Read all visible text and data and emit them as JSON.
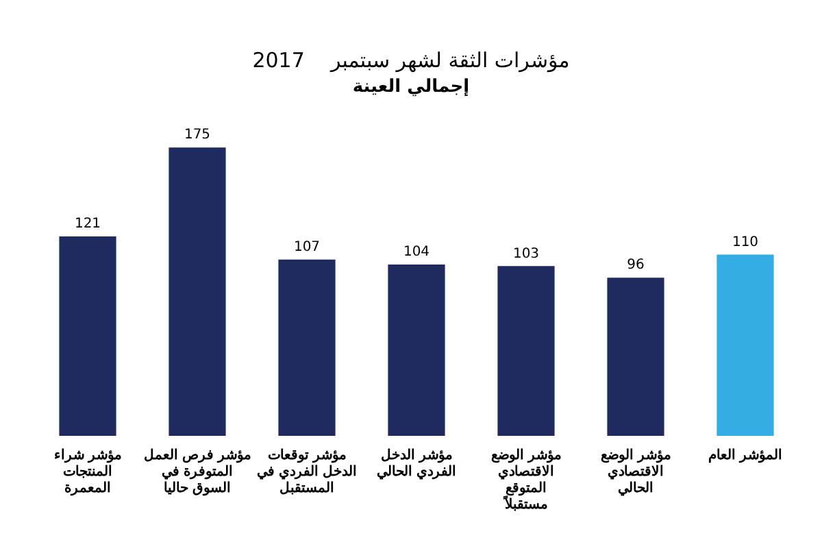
{
  "chart_data": {
    "type": "bar",
    "title": "مؤشرات الثقة لشهر سبتمبر    2017",
    "subtitle": "إجمالي العينة",
    "categories": [
      "مؤشر شراء المنتجات المعمرة",
      "مؤشر فرص العمل المتوفرة في السوق حاليا",
      "مؤشر توقعات الدخل الفردي في المستقبل",
      "مؤشر الدخل الفردي الحالي",
      "مؤشر الوضع الاقتصادي المتوقع مستقبلاً",
      "مؤشر الوضع الاقتصادي الحالي",
      "المؤشر العام"
    ],
    "values": [
      121,
      175,
      107,
      104,
      103,
      96,
      110
    ],
    "colors": [
      "#1f2a5e",
      "#1f2a5e",
      "#1f2a5e",
      "#1f2a5e",
      "#1f2a5e",
      "#1f2a5e",
      "#33ade3"
    ],
    "data_labels": true,
    "relative": false,
    "grid": false,
    "legend": false
  }
}
